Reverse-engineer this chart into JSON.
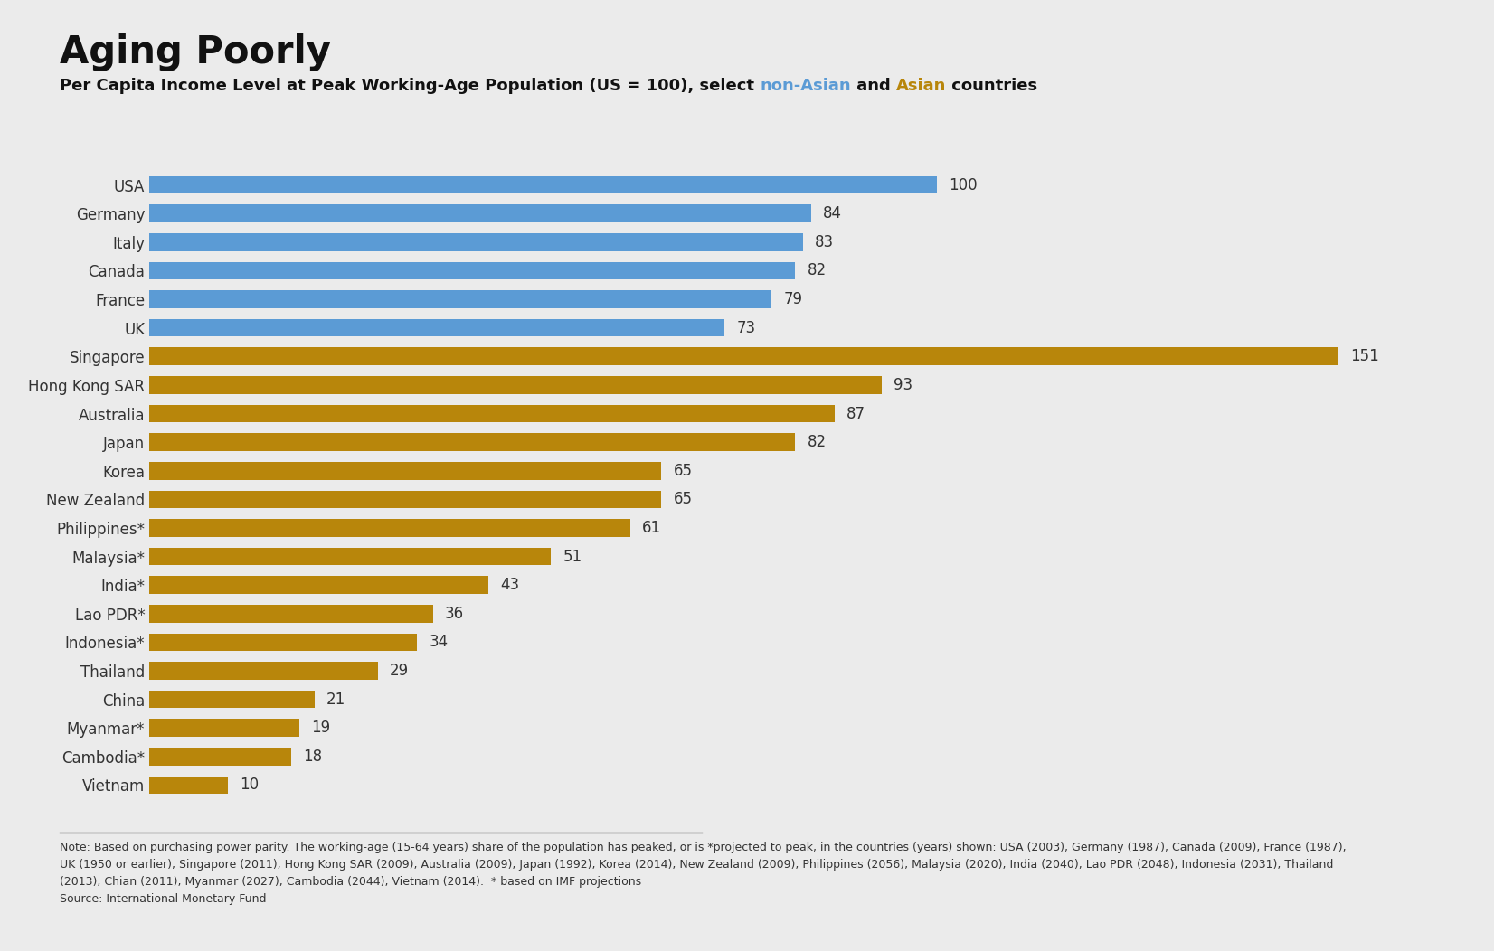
{
  "title": "Aging Poorly",
  "subtitle_part1": "Per Capita Income Level at Peak Working-Age Population (US = 100), select ",
  "subtitle_non_asian": "non-Asian",
  "subtitle_middle": " and ",
  "subtitle_asian": "Asian",
  "subtitle_end": " countries",
  "categories": [
    "USA",
    "Germany",
    "Italy",
    "Canada",
    "France",
    "UK",
    "Singapore",
    "Hong Kong SAR",
    "Australia",
    "Japan",
    "Korea",
    "New Zealand",
    "Philippines*",
    "Malaysia*",
    "India*",
    "Lao PDR*",
    "Indonesia*",
    "Thailand",
    "China",
    "Myanmar*",
    "Cambodia*",
    "Vietnam"
  ],
  "values": [
    100,
    84,
    83,
    82,
    79,
    73,
    151,
    93,
    87,
    82,
    65,
    65,
    61,
    51,
    43,
    36,
    34,
    29,
    21,
    19,
    18,
    10
  ],
  "colors": [
    "#5B9BD5",
    "#5B9BD5",
    "#5B9BD5",
    "#5B9BD5",
    "#5B9BD5",
    "#5B9BD5",
    "#B8860B",
    "#B8860B",
    "#B8860B",
    "#B8860B",
    "#B8860B",
    "#B8860B",
    "#B8860B",
    "#B8860B",
    "#B8860B",
    "#B8860B",
    "#B8860B",
    "#B8860B",
    "#B8860B",
    "#B8860B",
    "#B8860B",
    "#B8860B"
  ],
  "non_asian_color": "#5B9BD5",
  "asian_color": "#B8860B",
  "background_color": "#EBEBEB",
  "title_fontsize": 30,
  "subtitle_fontsize": 13,
  "bar_label_fontsize": 12,
  "ytick_fontsize": 12,
  "note_text_line1": "Note: Based on purchasing power parity. The working-age (15-64 years) share of the population has peaked, or is *projected to peak, in the countries (years) shown: USA (2003), Germany (1987), Canada (2009), France (1987),",
  "note_text_line2": "UK (1950 or earlier), Singapore (2011), Hong Kong SAR (2009), Australia (2009), Japan (1992), Korea (2014), New Zealand (2009), Philippines (2056), Malaysia (2020), India (2040), Lao PDR (2048), Indonesia (2031), Thailand",
  "note_text_line3": "(2013), Chian (2011), Myanmar (2027), Cambodia (2044), Vietnam (2014).  * based on IMF projections",
  "note_text_line4": "Source: International Monetary Fund",
  "note_fontsize": 9,
  "xlim": [
    0,
    165
  ]
}
